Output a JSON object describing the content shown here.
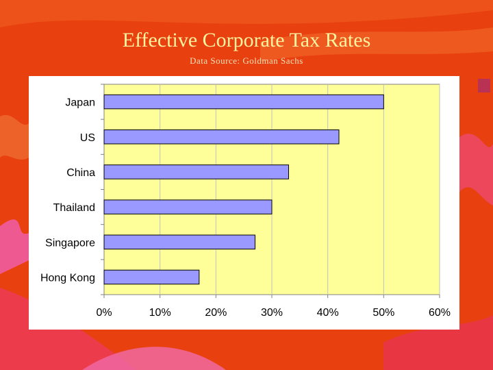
{
  "slide": {
    "title": "Effective Corporate Tax Rates",
    "subtitle": "Data Source: Goldman Sachs"
  },
  "colors": {
    "background": "#e8400f",
    "title": "#fff3a0",
    "plot_area": "#ffff99",
    "bar_fill": "#9999ff",
    "bar_stroke": "#000000",
    "gridline": "#c0c0c0"
  },
  "chart_data": {
    "type": "bar",
    "orientation": "horizontal",
    "categories": [
      "Japan",
      "US",
      "China",
      "Thailand",
      "Singapore",
      "Hong Kong"
    ],
    "values": [
      50,
      42,
      33,
      30,
      27,
      17
    ],
    "unit": "%",
    "xlim": [
      0,
      60
    ],
    "x_ticks": [
      "0%",
      "10%",
      "20%",
      "30%",
      "40%",
      "50%",
      "60%"
    ],
    "title": "",
    "xlabel": "",
    "ylabel": "",
    "grid": "vertical",
    "legend": "none"
  }
}
